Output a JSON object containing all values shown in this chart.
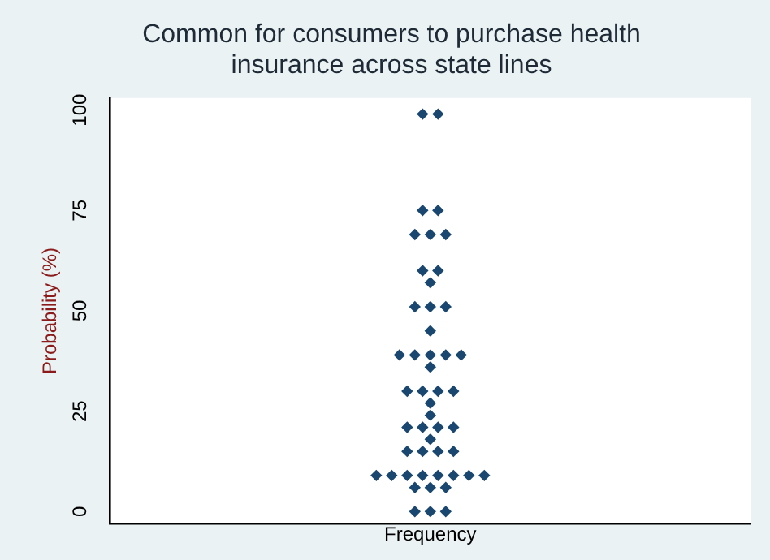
{
  "chart_data": {
    "type": "scatter",
    "title": "Common for consumers to purchase health\ninsurance across state lines",
    "xlabel": "Frequency",
    "ylabel": "Probability (%)",
    "categories": [
      null,
      null,
      null,
      null,
      null,
      null,
      null,
      null,
      null,
      null,
      null,
      null,
      null,
      null,
      null,
      null,
      null,
      null,
      null,
      null,
      null,
      null,
      null,
      null,
      null,
      null,
      null,
      null,
      null,
      null,
      null,
      null,
      null,
      null,
      null,
      null,
      null,
      null,
      null,
      null,
      null,
      null,
      null,
      null,
      null,
      null,
      null,
      null,
      null,
      null,
      null,
      null,
      null,
      null,
      null,
      null,
      null,
      null,
      null,
      null,
      null,
      null,
      null,
      null,
      null,
      null,
      null,
      null,
      null,
      null,
      null,
      null,
      null,
      null,
      null,
      null,
      null,
      null,
      null,
      null,
      null,
      null,
      null
    ],
    "series": [
      {
        "color": "#1a476f",
        "values": [
          null,
          null,
          null,
          null,
          null,
          null,
          null,
          null,
          null,
          null,
          null,
          null,
          null,
          null,
          null,
          null,
          null,
          null,
          null,
          null,
          null,
          null,
          null,
          null,
          null,
          null,
          null,
          null,
          null,
          null,
          null,
          null,
          null,
          null,
          null,
          null,
          null,
          null,
          null,
          null,
          99,
          null,
          99,
          null,
          null,
          null,
          null,
          null,
          null,
          null,
          null,
          null,
          null,
          null,
          null,
          null,
          null,
          null,
          null,
          null,
          null,
          null,
          null,
          null,
          null,
          null,
          null,
          null,
          null,
          null,
          null,
          null,
          null,
          null,
          null,
          null,
          null,
          null,
          null,
          null,
          null,
          null,
          null
        ]
      },
      {
        "color": "#1a476f",
        "values": [
          null,
          null,
          null,
          null,
          null,
          null,
          null,
          null,
          null,
          null,
          null,
          null,
          null,
          null,
          null,
          null,
          null,
          null,
          null,
          null,
          null,
          null,
          null,
          null,
          null,
          null,
          null,
          null,
          null,
          null,
          null,
          null,
          null,
          null,
          null,
          null,
          null,
          null,
          null,
          null,
          75,
          null,
          75,
          null,
          null,
          null,
          null,
          null,
          null,
          null,
          null,
          null,
          null,
          null,
          null,
          null,
          null,
          null,
          null,
          null,
          null,
          null,
          null,
          null,
          null,
          null,
          null,
          null,
          null,
          null,
          null,
          null,
          null,
          null,
          null,
          null,
          null,
          null,
          null,
          null,
          null,
          null,
          null
        ]
      },
      {
        "color": "#1a476f",
        "values": [
          null,
          null,
          null,
          null,
          null,
          null,
          null,
          null,
          null,
          null,
          null,
          null,
          null,
          null,
          null,
          null,
          null,
          null,
          null,
          null,
          null,
          null,
          null,
          null,
          null,
          null,
          null,
          null,
          null,
          null,
          null,
          null,
          null,
          null,
          null,
          null,
          null,
          null,
          null,
          69,
          null,
          69,
          null,
          69,
          null,
          null,
          null,
          null,
          null,
          null,
          null,
          null,
          null,
          null,
          null,
          null,
          null,
          null,
          null,
          null,
          null,
          null,
          null,
          null,
          null,
          null,
          null,
          null,
          null,
          null,
          null,
          null,
          null,
          null,
          null,
          null,
          null,
          null,
          null,
          null,
          null,
          null,
          null
        ]
      },
      {
        "color": "#1a476f",
        "values": [
          null,
          null,
          null,
          null,
          null,
          null,
          null,
          null,
          null,
          null,
          null,
          null,
          null,
          null,
          null,
          null,
          null,
          null,
          null,
          null,
          null,
          null,
          null,
          null,
          null,
          null,
          null,
          null,
          null,
          null,
          null,
          null,
          null,
          null,
          null,
          null,
          null,
          null,
          null,
          null,
          60,
          null,
          60,
          null,
          null,
          null,
          null,
          null,
          null,
          null,
          null,
          null,
          null,
          null,
          null,
          null,
          null,
          null,
          null,
          null,
          null,
          null,
          null,
          null,
          null,
          null,
          null,
          null,
          null,
          null,
          null,
          null,
          null,
          null,
          null,
          null,
          null,
          null,
          null,
          null,
          null,
          null,
          null
        ]
      },
      {
        "color": "#1a476f",
        "values": [
          null,
          null,
          null,
          null,
          null,
          null,
          null,
          null,
          null,
          null,
          null,
          null,
          null,
          null,
          null,
          null,
          null,
          null,
          null,
          null,
          null,
          null,
          null,
          null,
          null,
          null,
          null,
          null,
          null,
          null,
          null,
          null,
          null,
          null,
          null,
          null,
          null,
          null,
          null,
          null,
          null,
          57,
          null,
          null,
          null,
          null,
          null,
          null,
          null,
          null,
          null,
          null,
          null,
          null,
          null,
          null,
          null,
          null,
          null,
          null,
          null,
          null,
          null,
          null,
          null,
          null,
          null,
          null,
          null,
          null,
          null,
          null,
          null,
          null,
          null,
          null,
          null,
          null,
          null,
          null,
          null,
          null,
          null
        ]
      },
      {
        "color": "#1a476f",
        "values": [
          null,
          null,
          null,
          null,
          null,
          null,
          null,
          null,
          null,
          null,
          null,
          null,
          null,
          null,
          null,
          null,
          null,
          null,
          null,
          null,
          null,
          null,
          null,
          null,
          null,
          null,
          null,
          null,
          null,
          null,
          null,
          null,
          null,
          null,
          null,
          null,
          null,
          null,
          null,
          51,
          null,
          51,
          null,
          51,
          null,
          null,
          null,
          null,
          null,
          null,
          null,
          null,
          null,
          null,
          null,
          null,
          null,
          null,
          null,
          null,
          null,
          null,
          null,
          null,
          null,
          null,
          null,
          null,
          null,
          null,
          null,
          null,
          null,
          null,
          null,
          null,
          null,
          null,
          null,
          null,
          null,
          null,
          null
        ]
      },
      {
        "color": "#1a476f",
        "values": [
          null,
          null,
          null,
          null,
          null,
          null,
          null,
          null,
          null,
          null,
          null,
          null,
          null,
          null,
          null,
          null,
          null,
          null,
          null,
          null,
          null,
          null,
          null,
          null,
          null,
          null,
          null,
          null,
          null,
          null,
          null,
          null,
          null,
          null,
          null,
          null,
          null,
          null,
          null,
          null,
          null,
          45,
          null,
          null,
          null,
          null,
          null,
          null,
          null,
          null,
          null,
          null,
          null,
          null,
          null,
          null,
          null,
          null,
          null,
          null,
          null,
          null,
          null,
          null,
          null,
          null,
          null,
          null,
          null,
          null,
          null,
          null,
          null,
          null,
          null,
          null,
          null,
          null,
          null,
          null,
          null,
          null,
          null
        ]
      },
      {
        "color": "#1a476f",
        "values": [
          null,
          null,
          null,
          null,
          null,
          null,
          null,
          null,
          null,
          null,
          null,
          null,
          null,
          null,
          null,
          null,
          null,
          null,
          null,
          null,
          null,
          null,
          null,
          null,
          null,
          null,
          null,
          null,
          null,
          null,
          null,
          null,
          null,
          null,
          null,
          null,
          null,
          39,
          null,
          39,
          null,
          39,
          null,
          39,
          null,
          39,
          null,
          null,
          null,
          null,
          null,
          null,
          null,
          null,
          null,
          null,
          null,
          null,
          null,
          null,
          null,
          null,
          null,
          null,
          null,
          null,
          null,
          null,
          null,
          null,
          null,
          null,
          null,
          null,
          null,
          null,
          null,
          null,
          null,
          null,
          null,
          null,
          null
        ]
      },
      {
        "color": "#1a476f",
        "values": [
          null,
          null,
          null,
          null,
          null,
          null,
          null,
          null,
          null,
          null,
          null,
          null,
          null,
          null,
          null,
          null,
          null,
          null,
          null,
          null,
          null,
          null,
          null,
          null,
          null,
          null,
          null,
          null,
          null,
          null,
          null,
          null,
          null,
          null,
          null,
          null,
          null,
          null,
          null,
          null,
          null,
          36,
          null,
          null,
          null,
          null,
          null,
          null,
          null,
          null,
          null,
          null,
          null,
          null,
          null,
          null,
          null,
          null,
          null,
          null,
          null,
          null,
          null,
          null,
          null,
          null,
          null,
          null,
          null,
          null,
          null,
          null,
          null,
          null,
          null,
          null,
          null,
          null,
          null,
          null,
          null,
          null,
          null
        ]
      },
      {
        "color": "#1a476f",
        "values": [
          null,
          null,
          null,
          null,
          null,
          null,
          null,
          null,
          null,
          null,
          null,
          null,
          null,
          null,
          null,
          null,
          null,
          null,
          null,
          null,
          null,
          null,
          null,
          null,
          null,
          null,
          null,
          null,
          null,
          null,
          null,
          null,
          null,
          null,
          null,
          null,
          null,
          null,
          30,
          null,
          30,
          null,
          30,
          null,
          30,
          null,
          null,
          null,
          null,
          null,
          null,
          null,
          null,
          null,
          null,
          null,
          null,
          null,
          null,
          null,
          null,
          null,
          null,
          null,
          null,
          null,
          null,
          null,
          null,
          null,
          null,
          null,
          null,
          null,
          null,
          null,
          null,
          null,
          null,
          null,
          null,
          null,
          null
        ]
      },
      {
        "color": "#1a476f",
        "values": [
          null,
          null,
          null,
          null,
          null,
          null,
          null,
          null,
          null,
          null,
          null,
          null,
          null,
          null,
          null,
          null,
          null,
          null,
          null,
          null,
          null,
          null,
          null,
          null,
          null,
          null,
          null,
          null,
          null,
          null,
          null,
          null,
          null,
          null,
          null,
          null,
          null,
          null,
          null,
          null,
          null,
          27,
          null,
          null,
          null,
          null,
          null,
          null,
          null,
          null,
          null,
          null,
          null,
          null,
          null,
          null,
          null,
          null,
          null,
          null,
          null,
          null,
          null,
          null,
          null,
          null,
          null,
          null,
          null,
          null,
          null,
          null,
          null,
          null,
          null,
          null,
          null,
          null,
          null,
          null,
          null,
          null,
          null
        ]
      },
      {
        "color": "#1a476f",
        "values": [
          null,
          null,
          null,
          null,
          null,
          null,
          null,
          null,
          null,
          null,
          null,
          null,
          null,
          null,
          null,
          null,
          null,
          null,
          null,
          null,
          null,
          null,
          null,
          null,
          null,
          null,
          null,
          null,
          null,
          null,
          null,
          null,
          null,
          null,
          null,
          null,
          null,
          null,
          null,
          null,
          null,
          24,
          null,
          null,
          null,
          null,
          null,
          null,
          null,
          null,
          null,
          null,
          null,
          null,
          null,
          null,
          null,
          null,
          null,
          null,
          null,
          null,
          null,
          null,
          null,
          null,
          null,
          null,
          null,
          null,
          null,
          null,
          null,
          null,
          null,
          null,
          null,
          null,
          null,
          null,
          null,
          null,
          null
        ]
      },
      {
        "color": "#1a476f",
        "values": [
          null,
          null,
          null,
          null,
          null,
          null,
          null,
          null,
          null,
          null,
          null,
          null,
          null,
          null,
          null,
          null,
          null,
          null,
          null,
          null,
          null,
          null,
          null,
          null,
          null,
          null,
          null,
          null,
          null,
          null,
          null,
          null,
          null,
          null,
          null,
          null,
          null,
          null,
          21,
          null,
          21,
          null,
          21,
          null,
          21,
          null,
          null,
          null,
          null,
          null,
          null,
          null,
          null,
          null,
          null,
          null,
          null,
          null,
          null,
          null,
          null,
          null,
          null,
          null,
          null,
          null,
          null,
          null,
          null,
          null,
          null,
          null,
          null,
          null,
          null,
          null,
          null,
          null,
          null,
          null,
          null,
          null,
          null
        ]
      },
      {
        "color": "#1a476f",
        "values": [
          null,
          null,
          null,
          null,
          null,
          null,
          null,
          null,
          null,
          null,
          null,
          null,
          null,
          null,
          null,
          null,
          null,
          null,
          null,
          null,
          null,
          null,
          null,
          null,
          null,
          null,
          null,
          null,
          null,
          null,
          null,
          null,
          null,
          null,
          null,
          null,
          null,
          null,
          null,
          null,
          null,
          18,
          null,
          null,
          null,
          null,
          null,
          null,
          null,
          null,
          null,
          null,
          null,
          null,
          null,
          null,
          null,
          null,
          null,
          null,
          null,
          null,
          null,
          null,
          null,
          null,
          null,
          null,
          null,
          null,
          null,
          null,
          null,
          null,
          null,
          null,
          null,
          null,
          null,
          null,
          null,
          null,
          null
        ]
      },
      {
        "color": "#1a476f",
        "values": [
          null,
          null,
          null,
          null,
          null,
          null,
          null,
          null,
          null,
          null,
          null,
          null,
          null,
          null,
          null,
          null,
          null,
          null,
          null,
          null,
          null,
          null,
          null,
          null,
          null,
          null,
          null,
          null,
          null,
          null,
          null,
          null,
          null,
          null,
          null,
          null,
          null,
          null,
          15,
          null,
          15,
          null,
          15,
          null,
          15,
          null,
          null,
          null,
          null,
          null,
          null,
          null,
          null,
          null,
          null,
          null,
          null,
          null,
          null,
          null,
          null,
          null,
          null,
          null,
          null,
          null,
          null,
          null,
          null,
          null,
          null,
          null,
          null,
          null,
          null,
          null,
          null,
          null,
          null,
          null,
          null,
          null,
          null
        ]
      },
      {
        "color": "#1a476f",
        "values": [
          null,
          null,
          null,
          null,
          null,
          null,
          null,
          null,
          null,
          null,
          null,
          null,
          null,
          null,
          null,
          null,
          null,
          null,
          null,
          null,
          null,
          null,
          null,
          null,
          null,
          null,
          null,
          null,
          null,
          null,
          null,
          null,
          null,
          null,
          9,
          null,
          9,
          null,
          9,
          null,
          9,
          null,
          9,
          null,
          9,
          null,
          9,
          null,
          9,
          null,
          null,
          null,
          null,
          null,
          null,
          null,
          null,
          null,
          null,
          null,
          null,
          null,
          null,
          null,
          null,
          null,
          null,
          null,
          null,
          null,
          null,
          null,
          null,
          null,
          null,
          null,
          null,
          null,
          null,
          null,
          null,
          null,
          null
        ]
      },
      {
        "color": "#1a476f",
        "values": [
          null,
          null,
          null,
          null,
          null,
          null,
          null,
          null,
          null,
          null,
          null,
          null,
          null,
          null,
          null,
          null,
          null,
          null,
          null,
          null,
          null,
          null,
          null,
          null,
          null,
          null,
          null,
          null,
          null,
          null,
          null,
          null,
          null,
          null,
          null,
          null,
          null,
          null,
          null,
          6,
          null,
          6,
          null,
          6,
          null,
          null,
          null,
          null,
          null,
          null,
          null,
          null,
          null,
          null,
          null,
          null,
          null,
          null,
          null,
          null,
          null,
          null,
          null,
          null,
          null,
          null,
          null,
          null,
          null,
          null,
          null,
          null,
          null,
          null,
          null,
          null,
          null,
          null,
          null,
          null,
          null,
          null,
          null
        ]
      },
      {
        "color": "#1a476f",
        "values": [
          null,
          null,
          null,
          null,
          null,
          null,
          null,
          null,
          null,
          null,
          null,
          null,
          null,
          null,
          null,
          null,
          null,
          null,
          null,
          null,
          null,
          null,
          null,
          null,
          null,
          null,
          null,
          null,
          null,
          null,
          null,
          null,
          null,
          null,
          null,
          null,
          null,
          null,
          null,
          0,
          null,
          0,
          null,
          0,
          null,
          null,
          null,
          null,
          null,
          null,
          null,
          null,
          null,
          null,
          null,
          null,
          null,
          null,
          null,
          null,
          null,
          null,
          null,
          null,
          null,
          null,
          null,
          null,
          null,
          null,
          null,
          null,
          null,
          null,
          null,
          null,
          null,
          null,
          null,
          null,
          null,
          null,
          null
        ]
      }
    ],
    "ylim": [
      -3,
      103
    ],
    "yticks": [
      0,
      25,
      50,
      75,
      100
    ],
    "marker": "diamond",
    "grid": false,
    "legend": false,
    "tick_labels": "y"
  }
}
